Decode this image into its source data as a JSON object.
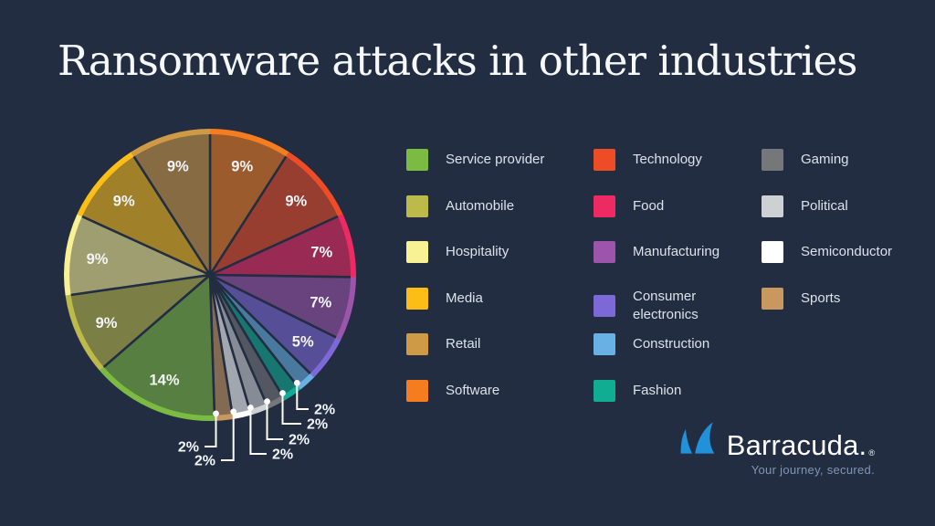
{
  "title": "Ransomware attacks in other industries",
  "colors": {
    "background": "#222d42",
    "title_text": "#f7f8fa",
    "legend_text": "#dce2e9",
    "percent_label": "#f2f5f8",
    "leader_line": "#ffffff",
    "logo_blue": "#2191d9",
    "tagline_text": "#8295b2"
  },
  "chart_data": {
    "type": "pie",
    "title": "Ransomware attacks in other industries",
    "unit": "%",
    "start_angle_deg": 0,
    "direction": "clockwise",
    "legend_position": "right",
    "label_style": "percent labels inside slices; 2% slices use white leader lines with dots",
    "slices": [
      {
        "label": "Software",
        "value": 9,
        "display": "9%",
        "color": "#f57d1f"
      },
      {
        "label": "Technology",
        "value": 9,
        "display": "9%",
        "color": "#ee4c26"
      },
      {
        "label": "Food",
        "value": 7,
        "display": "7%",
        "color": "#ee2a62"
      },
      {
        "label": "Manufacturing",
        "value": 7,
        "display": "7%",
        "color": "#9c55ab"
      },
      {
        "label": "Consumer electronics",
        "value": 5,
        "display": "5%",
        "color": "#7d68d8"
      },
      {
        "label": "Construction",
        "value": 2,
        "display": "2%",
        "color": "#68b2e3"
      },
      {
        "label": "Fashion",
        "value": 2,
        "display": "2%",
        "color": "#10ad92"
      },
      {
        "label": "Gaming",
        "value": 2,
        "display": "2%",
        "color": "#76777b"
      },
      {
        "label": "Political",
        "value": 2,
        "display": "2%",
        "color": "#ced1d3"
      },
      {
        "label": "Semiconductor",
        "value": 2,
        "display": "2%",
        "color": "#ffffff"
      },
      {
        "label": "Sports",
        "value": 2,
        "display": "2%",
        "color": "#c9985f"
      },
      {
        "label": "Service provider",
        "value": 14,
        "display": "14%",
        "color": "#7cbb42"
      },
      {
        "label": "Automobile",
        "value": 9,
        "display": "9%",
        "color": "#bcba49"
      },
      {
        "label": "Hospitality",
        "value": 9,
        "display": "9%",
        "color": "#f9f295"
      },
      {
        "label": "Media",
        "value": 9,
        "display": "9%",
        "color": "#fcbd17"
      },
      {
        "label": "Retail",
        "value": 9,
        "display": "9%",
        "color": "#cf9a45"
      }
    ]
  },
  "legend": {
    "columns": [
      {
        "items": [
          "Service provider",
          "Automobile",
          "Hospitality",
          "Media",
          "Retail",
          "Software"
        ]
      },
      {
        "items": [
          "Technology",
          "Food",
          "Manufacturing",
          "Consumer electronics",
          "Construction",
          "Fashion"
        ]
      },
      {
        "items": [
          "Gaming",
          "Political",
          "Semiconductor",
          "Sports"
        ]
      }
    ]
  },
  "logo": {
    "brand": "Barracuda.",
    "registered": "®",
    "tagline": "Your journey, secured.",
    "icon": "barracuda-fins-icon"
  }
}
